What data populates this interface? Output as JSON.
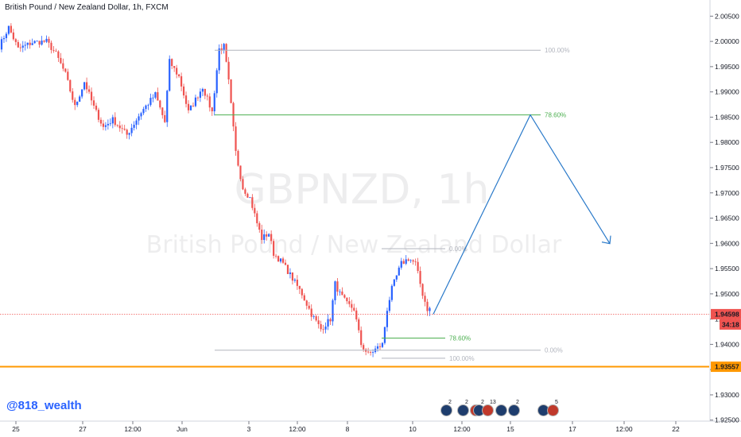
{
  "title": "British Pound / New Zealand Dollar, 1h, FXCM",
  "watermark": {
    "symbol": "GBPNZD, 1h",
    "name": "British Pound / New Zealand Dollar"
  },
  "handle": "@818_wealth",
  "colors": {
    "up": "#2962ff",
    "down": "#ef5350",
    "support": "#ff9800",
    "fib_green": "#4caf50",
    "fib_gray": "#b2b5be",
    "arrow": "#2979c9",
    "price_line": "#ef5350"
  },
  "chart_data": {
    "type": "candlestick",
    "symbol": "GBPNZD",
    "timeframe": "1h",
    "ylim": [
      1.9248,
      2.0082
    ],
    "y_ticks": [
      "2.00500",
      "2.00000",
      "1.99500",
      "1.99000",
      "1.98500",
      "1.98000",
      "1.97500",
      "1.97000",
      "1.96500",
      "1.96000",
      "1.95500",
      "1.95000",
      "1.94500",
      "1.94000",
      "1.93500",
      "1.93000",
      "1.92500"
    ],
    "x_ticks": [
      "25",
      "27",
      "12:00",
      "Jun",
      "3",
      "12:00",
      "8",
      "10",
      "12:00",
      "15",
      "17",
      "12:00",
      "22"
    ],
    "last_price": {
      "label": "1.94598",
      "value": 1.94598,
      "countdown": "34:18"
    },
    "support_line": {
      "label": "1.93557",
      "value": 1.93557
    },
    "fib_big": {
      "levels": [
        {
          "label": "100.00%",
          "value": 1.99825
        },
        {
          "label": "78.60%",
          "value": 1.98545
        },
        {
          "label": "0.00%",
          "value": 1.93885
        }
      ]
    },
    "fib_small": {
      "levels": [
        {
          "label": "0.00%",
          "value": 1.95895
        },
        {
          "label": "78.60%",
          "value": 1.94125
        },
        {
          "label": "100.00%",
          "value": 1.93725
        }
      ]
    },
    "forecast_path": [
      1.94598,
      1.98545,
      1.95995
    ],
    "event_markers": [
      {
        "flag": "nz",
        "count": "2"
      },
      {
        "flag": "nz",
        "count": "2"
      },
      {
        "flag": "uk",
        "count": ""
      },
      {
        "flag": "nz",
        "count": "2"
      },
      {
        "flag": "uk",
        "count": "13"
      },
      {
        "flag": "nz",
        "count": ""
      },
      {
        "flag": "nz",
        "count": "2"
      },
      {
        "flag": "nz",
        "count": ""
      },
      {
        "flag": "uk",
        "count": "5"
      }
    ],
    "anchors": [
      [
        0,
        1.999
      ],
      [
        4,
        2.0028
      ],
      [
        8,
        1.9985
      ],
      [
        14,
        1.9998
      ],
      [
        20,
        2.0
      ],
      [
        24,
        1.9975
      ],
      [
        28,
        1.9935
      ],
      [
        32,
        1.987
      ],
      [
        36,
        1.992
      ],
      [
        40,
        1.987
      ],
      [
        44,
        1.983
      ],
      [
        48,
        1.9845
      ],
      [
        54,
        1.9815
      ],
      [
        60,
        1.986
      ],
      [
        66,
        1.9895
      ],
      [
        70,
        1.984
      ],
      [
        72,
        1.996
      ],
      [
        76,
        1.993
      ],
      [
        80,
        1.986
      ],
      [
        86,
        1.991
      ],
      [
        90,
        1.986
      ],
      [
        93,
        1.9985
      ],
      [
        95,
        1.999
      ],
      [
        97,
        1.992
      ],
      [
        100,
        1.978
      ],
      [
        103,
        1.971
      ],
      [
        106,
        1.969
      ],
      [
        109,
        1.964
      ],
      [
        111,
        1.961
      ],
      [
        114,
        1.962
      ],
      [
        116,
        1.958
      ],
      [
        120,
        1.956
      ],
      [
        124,
        1.953
      ],
      [
        128,
        1.95
      ],
      [
        132,
        1.946
      ],
      [
        136,
        1.943
      ],
      [
        140,
        1.945
      ],
      [
        142,
        1.952
      ],
      [
        144,
        1.95
      ],
      [
        147,
        1.948
      ],
      [
        150,
        1.947
      ],
      [
        153,
        1.94
      ],
      [
        156,
        1.938
      ],
      [
        159,
        1.939
      ],
      [
        162,
        1.94
      ],
      [
        164,
        1.947
      ],
      [
        166,
        1.951
      ],
      [
        170,
        1.956
      ],
      [
        173,
        1.957
      ],
      [
        176,
        1.956
      ],
      [
        179,
        1.95
      ],
      [
        181,
        1.947
      ]
    ]
  }
}
